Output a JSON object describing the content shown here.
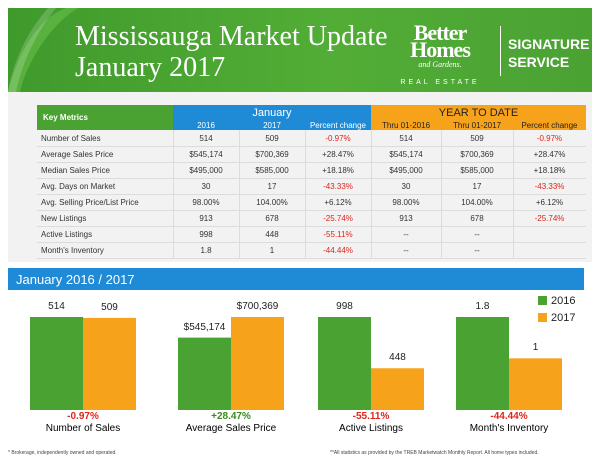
{
  "header": {
    "title_line1": "Mississauga Market Update",
    "title_line2": "January 2017",
    "brand_name": "Better Homes",
    "brand_sub": "and Gardens.",
    "brand_re": "REAL ESTATE",
    "signature_line1": "SIGNATURE",
    "signature_line2": "SERVICE",
    "color_green": "#4aa233"
  },
  "table": {
    "key_metrics_label": "Key Metrics",
    "january_label": "January",
    "ytd_label": "YEAR TO DATE",
    "columns": [
      "2016",
      "2017",
      "Percent change",
      "Thru 01-2016",
      "Thru 01-2017",
      "Percent change"
    ],
    "rows": [
      {
        "metric": "Number of Sales",
        "v2016": "514",
        "v2017": "509",
        "pct": "-0.97%",
        "ytd2016": "514",
        "ytd2017": "509",
        "ytdpct": "-0.97%"
      },
      {
        "metric": "Average Sales Price",
        "v2016": "$545,174",
        "v2017": "$700,369",
        "pct": "+28.47%",
        "ytd2016": "$545,174",
        "ytd2017": "$700,369",
        "ytdpct": "+28.47%"
      },
      {
        "metric": "Median Sales Price",
        "v2016": "$495,000",
        "v2017": "$585,000",
        "pct": "+18.18%",
        "ytd2016": "$495,000",
        "ytd2017": "$585,000",
        "ytdpct": "+18.18%"
      },
      {
        "metric": "Avg. Days on Market",
        "v2016": "30",
        "v2017": "17",
        "pct": "-43.33%",
        "ytd2016": "30",
        "ytd2017": "17",
        "ytdpct": "-43.33%"
      },
      {
        "metric": "Avg. Selling Price/List Price",
        "v2016": "98.00%",
        "v2017": "104.00%",
        "pct": "+6.12%",
        "ytd2016": "98.00%",
        "ytd2017": "104.00%",
        "ytdpct": "+6.12%"
      },
      {
        "metric": "New Listings",
        "v2016": "913",
        "v2017": "678",
        "pct": "-25.74%",
        "ytd2016": "913",
        "ytd2017": "678",
        "ytdpct": "-25.74%"
      },
      {
        "metric": "Active Listings",
        "v2016": "998",
        "v2017": "448",
        "pct": "-55.11%",
        "ytd2016": "--",
        "ytd2017": "--",
        "ytdpct": ""
      },
      {
        "metric": "Month's Inventory",
        "v2016": "1.8",
        "v2017": "1",
        "pct": "-44.44%",
        "ytd2016": "--",
        "ytd2017": "--",
        "ytdpct": ""
      }
    ]
  },
  "chart_section_title": "January  2016 / 2017",
  "chart_data": {
    "type": "bar",
    "categories": [
      "Number of Sales",
      "Average Sales Price",
      "Active Listings",
      "Month's Inventory"
    ],
    "series": [
      {
        "name": "2016",
        "color": "#4aa233",
        "labels": [
          "514",
          "$545,174",
          "998",
          "1.8"
        ],
        "heights": [
          514,
          545174,
          998,
          1.8
        ]
      },
      {
        "name": "2017",
        "color": "#f7a21b",
        "labels": [
          "509",
          "$700,369",
          "448",
          "1"
        ],
        "heights": [
          509,
          700369,
          448,
          1
        ]
      }
    ],
    "percent_changes": [
      "-0.97%",
      "+28.47%",
      "-55.11%",
      "-44.44%"
    ],
    "percent_colors": [
      "#e2231a",
      "#3a8a20",
      "#e2231a",
      "#e2231a"
    ]
  },
  "footer": {
    "left": "* Brokerage, independently owned and operated.",
    "right": "**All statistics as provided by the TREB Marketwatch Monthly Report. All home types included."
  }
}
